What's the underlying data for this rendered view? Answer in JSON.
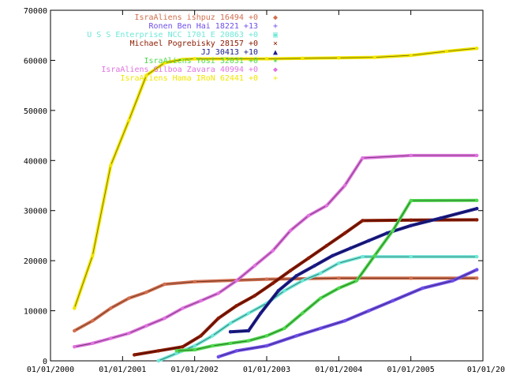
{
  "chart_data": {
    "type": "line",
    "title": "",
    "xlabel": "",
    "ylabel": "",
    "x_axis": {
      "type": "date",
      "range": [
        "2000-01-01",
        "2006-01-01"
      ],
      "tick_labels": [
        "01/01/2000",
        "01/01/2001",
        "01/01/2002",
        "01/01/2003",
        "01/01/2004",
        "01/01/2005",
        "01/01/20"
      ]
    },
    "y_axis": {
      "range": [
        0,
        70000
      ],
      "ticks": [
        0,
        10000,
        20000,
        30000,
        40000,
        50000,
        60000,
        70000
      ],
      "tick_labels": [
        "0",
        "10000",
        "20000",
        "30000",
        "40000",
        "50000",
        "60000",
        "70000"
      ]
    },
    "grid": false,
    "legend_position": "top-right",
    "series": [
      {
        "name": "IsraAliens  ishpuz 16494 +0",
        "color": "#d2704f",
        "marker": "◆",
        "x": [
          "2000-05-01",
          "2000-08-01",
          "2000-11-01",
          "2001-02-01",
          "2001-05-01",
          "2001-08-01",
          "2002-01-01",
          "2003-01-01",
          "2004-01-01",
          "2005-01-01",
          "2005-12-01"
        ],
        "y": [
          6000,
          8000,
          10500,
          12500,
          13700,
          15300,
          15800,
          16300,
          16500,
          16500,
          16500
        ]
      },
      {
        "name": "Ronen Ben Hai 18221 +13",
        "color": "#6f4ee8",
        "marker": "+",
        "x": [
          "2002-05-01",
          "2002-08-01",
          "2003-01-01",
          "2003-06-01",
          "2003-10-01",
          "2004-02-01",
          "2004-06-01",
          "2004-10-01",
          "2005-03-01",
          "2005-08-01",
          "2005-12-01"
        ],
        "y": [
          800,
          2000,
          3000,
          5000,
          6500,
          8000,
          10000,
          12000,
          14500,
          16000,
          18200
        ]
      },
      {
        "name": "U S S  Enterprise NCC 1701 E 20863 +0",
        "color": "#6fe8d8",
        "marker": "▣",
        "x": [
          "2001-07-01",
          "2001-10-01",
          "2002-01-01",
          "2002-04-01",
          "2002-07-01",
          "2002-10-01",
          "2003-01-01",
          "2003-04-01",
          "2003-07-01",
          "2003-10-01",
          "2004-01-01",
          "2004-05-01",
          "2005-01-01",
          "2005-12-01"
        ],
        "y": [
          0,
          1500,
          3000,
          5000,
          7500,
          9500,
          11500,
          14000,
          16000,
          17500,
          19500,
          20800,
          20800,
          20800
        ]
      },
      {
        "name": "Michael Pogrebisky 28157 +0",
        "color": "#8b1a00",
        "marker": "×",
        "x": [
          "2001-03-01",
          "2001-07-01",
          "2001-11-01",
          "2002-02-01",
          "2002-05-01",
          "2002-08-01",
          "2002-11-01",
          "2003-02-01",
          "2003-05-01",
          "2003-08-01",
          "2003-11-01",
          "2004-02-01",
          "2004-05-01",
          "2005-01-01",
          "2005-12-01"
        ],
        "y": [
          1200,
          2000,
          2800,
          5000,
          8500,
          11000,
          13000,
          15500,
          18000,
          20500,
          23000,
          25500,
          28000,
          28100,
          28150
        ]
      },
      {
        "name": "JJ 30413 +10",
        "color": "#1c1c8c",
        "marker": "▲",
        "x": [
          "2002-07-01",
          "2002-10-01",
          "2002-12-01",
          "2003-03-01",
          "2003-06-01",
          "2003-09-01",
          "2003-12-01",
          "2004-03-01",
          "2004-06-01",
          "2004-09-01",
          "2005-01-01",
          "2005-06-01",
          "2005-12-01"
        ],
        "y": [
          5800,
          6000,
          9500,
          14000,
          17000,
          19000,
          21000,
          22500,
          24000,
          25500,
          27000,
          28500,
          30400
        ]
      },
      {
        "name": "IsraAliens  Yosi 32031 +0",
        "color": "#50d84f",
        "marker": "✶",
        "x": [
          "2001-10-01",
          "2002-01-01",
          "2002-04-01",
          "2002-07-01",
          "2002-10-01",
          "2003-01-01",
          "2003-04-01",
          "2003-07-01",
          "2003-10-01",
          "2004-01-01",
          "2004-04-01",
          "2004-07-01",
          "2004-10-01",
          "2005-01-01",
          "2005-12-01"
        ],
        "y": [
          2000,
          2200,
          3000,
          3500,
          4000,
          5000,
          6500,
          9500,
          12500,
          14500,
          16000,
          21000,
          26000,
          32000,
          32031
        ]
      },
      {
        "name": "IsraAliens  Gilboa Zavara 40994 +0",
        "color": "#e074e0",
        "marker": "◆",
        "x": [
          "2000-05-01",
          "2000-08-01",
          "2000-11-01",
          "2001-02-01",
          "2001-05-01",
          "2001-08-01",
          "2001-11-01",
          "2002-02-01",
          "2002-05-01",
          "2002-08-01",
          "2002-11-01",
          "2003-02-01",
          "2003-05-01",
          "2003-08-01",
          "2003-11-01",
          "2004-02-01",
          "2004-05-01",
          "2005-01-01",
          "2005-12-01"
        ],
        "y": [
          2800,
          3500,
          4500,
          5500,
          7000,
          8500,
          10500,
          12000,
          13500,
          16000,
          19000,
          22000,
          26000,
          29000,
          31000,
          35000,
          40500,
          41000,
          41000
        ]
      },
      {
        "name": "IsraAliens  Hama IRoN  62441 +0",
        "color": "#f2e600",
        "marker": "+",
        "x": [
          "2000-05-01",
          "2000-08-01",
          "2000-11-01",
          "2001-02-01",
          "2001-05-01",
          "2001-08-01",
          "2001-11-01",
          "2002-01-01",
          "2002-06-01",
          "2003-01-01",
          "2003-07-01",
          "2004-01-01",
          "2004-07-01",
          "2005-01-01",
          "2005-07-01",
          "2005-12-01"
        ],
        "y": [
          10500,
          21000,
          39000,
          48000,
          57000,
          59500,
          60200,
          60300,
          60300,
          60300,
          60400,
          60500,
          60600,
          61000,
          61800,
          62400
        ]
      }
    ]
  }
}
